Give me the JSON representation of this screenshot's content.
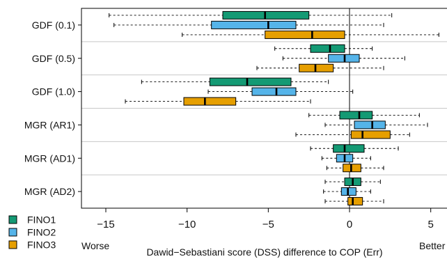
{
  "chart_data": {
    "type": "boxplot",
    "orientation": "horizontal",
    "title": "",
    "xlabel": "Dawid−Sebastiani score (DSS) difference to COP (Err)",
    "x_left_note": "Worse",
    "x_right_note": "Better",
    "xlim": [
      -16.5,
      6
    ],
    "xticks": [
      -15,
      -10,
      -5,
      0,
      5
    ],
    "xtick_labels": [
      "−15",
      "−10",
      "−5",
      "0",
      "5"
    ],
    "reference_line_x": 0,
    "categories": [
      "GDF (0.1)",
      "GDF (0.5)",
      "GDF (1.0)",
      "MGR (AR1)",
      "MGR (AD1)",
      "MGR (AD2)"
    ],
    "legend": {
      "placement": "bottom-left-outside"
    },
    "series": [
      {
        "name": "FINO1",
        "color": "#149a74",
        "boxes": [
          {
            "whisker_low": -14.8,
            "q1": -7.8,
            "median": -5.2,
            "q3": -2.5,
            "whisker_high": 2.6
          },
          {
            "whisker_low": -4.6,
            "q1": -2.4,
            "median": -1.2,
            "q3": -0.3,
            "whisker_high": 1.4
          },
          {
            "whisker_low": -12.8,
            "q1": -8.6,
            "median": -6.3,
            "q3": -3.6,
            "whisker_high": -1.3
          },
          {
            "whisker_low": -2.5,
            "q1": -0.6,
            "median": 0.6,
            "q3": 1.4,
            "whisker_high": 4.3
          },
          {
            "whisker_low": -2.4,
            "q1": -1.0,
            "median": -0.3,
            "q3": 0.9,
            "whisker_high": 3.0
          },
          {
            "whisker_low": -1.5,
            "q1": -0.3,
            "median": 0.2,
            "q3": 0.7,
            "whisker_high": 1.9
          }
        ]
      },
      {
        "name": "FINO2",
        "color": "#55b4e9",
        "boxes": [
          {
            "whisker_low": -14.5,
            "q1": -8.5,
            "median": -5.0,
            "q3": -3.3,
            "whisker_high": 2.1
          },
          {
            "whisker_low": -4.1,
            "q1": -1.3,
            "median": -0.3,
            "q3": 0.6,
            "whisker_high": 3.4
          },
          {
            "whisker_low": -8.7,
            "q1": -6.0,
            "median": -4.5,
            "q3": -3.3,
            "whisker_high": 0.2
          },
          {
            "whisker_low": -1.5,
            "q1": 0.3,
            "median": 1.4,
            "q3": 2.2,
            "whisker_high": 4.8
          },
          {
            "whisker_low": -1.7,
            "q1": -0.8,
            "median": -0.3,
            "q3": 0.2,
            "whisker_high": 1.3
          },
          {
            "whisker_low": -1.6,
            "q1": -0.5,
            "median": -0.1,
            "q3": 0.4,
            "whisker_high": 1.3
          }
        ]
      },
      {
        "name": "FINO3",
        "color": "#e69f00",
        "boxes": [
          {
            "whisker_low": -10.3,
            "q1": -5.2,
            "median": -2.3,
            "q3": -0.3,
            "whisker_high": 5.5
          },
          {
            "whisker_low": -5.7,
            "q1": -3.1,
            "median": -2.1,
            "q3": -1.0,
            "whisker_high": 2.1
          },
          {
            "whisker_low": -13.8,
            "q1": -10.2,
            "median": -8.9,
            "q3": -7.0,
            "whisker_high": -2.4
          },
          {
            "whisker_low": -3.3,
            "q1": 0.1,
            "median": 0.8,
            "q3": 2.5,
            "whisker_high": 3.7
          },
          {
            "whisker_low": -1.4,
            "q1": -0.4,
            "median": 0.1,
            "q3": 0.7,
            "whisker_high": 2.1
          },
          {
            "whisker_low": -1.5,
            "q1": -0.1,
            "median": 0.2,
            "q3": 0.8,
            "whisker_high": 2.1
          }
        ]
      }
    ]
  }
}
